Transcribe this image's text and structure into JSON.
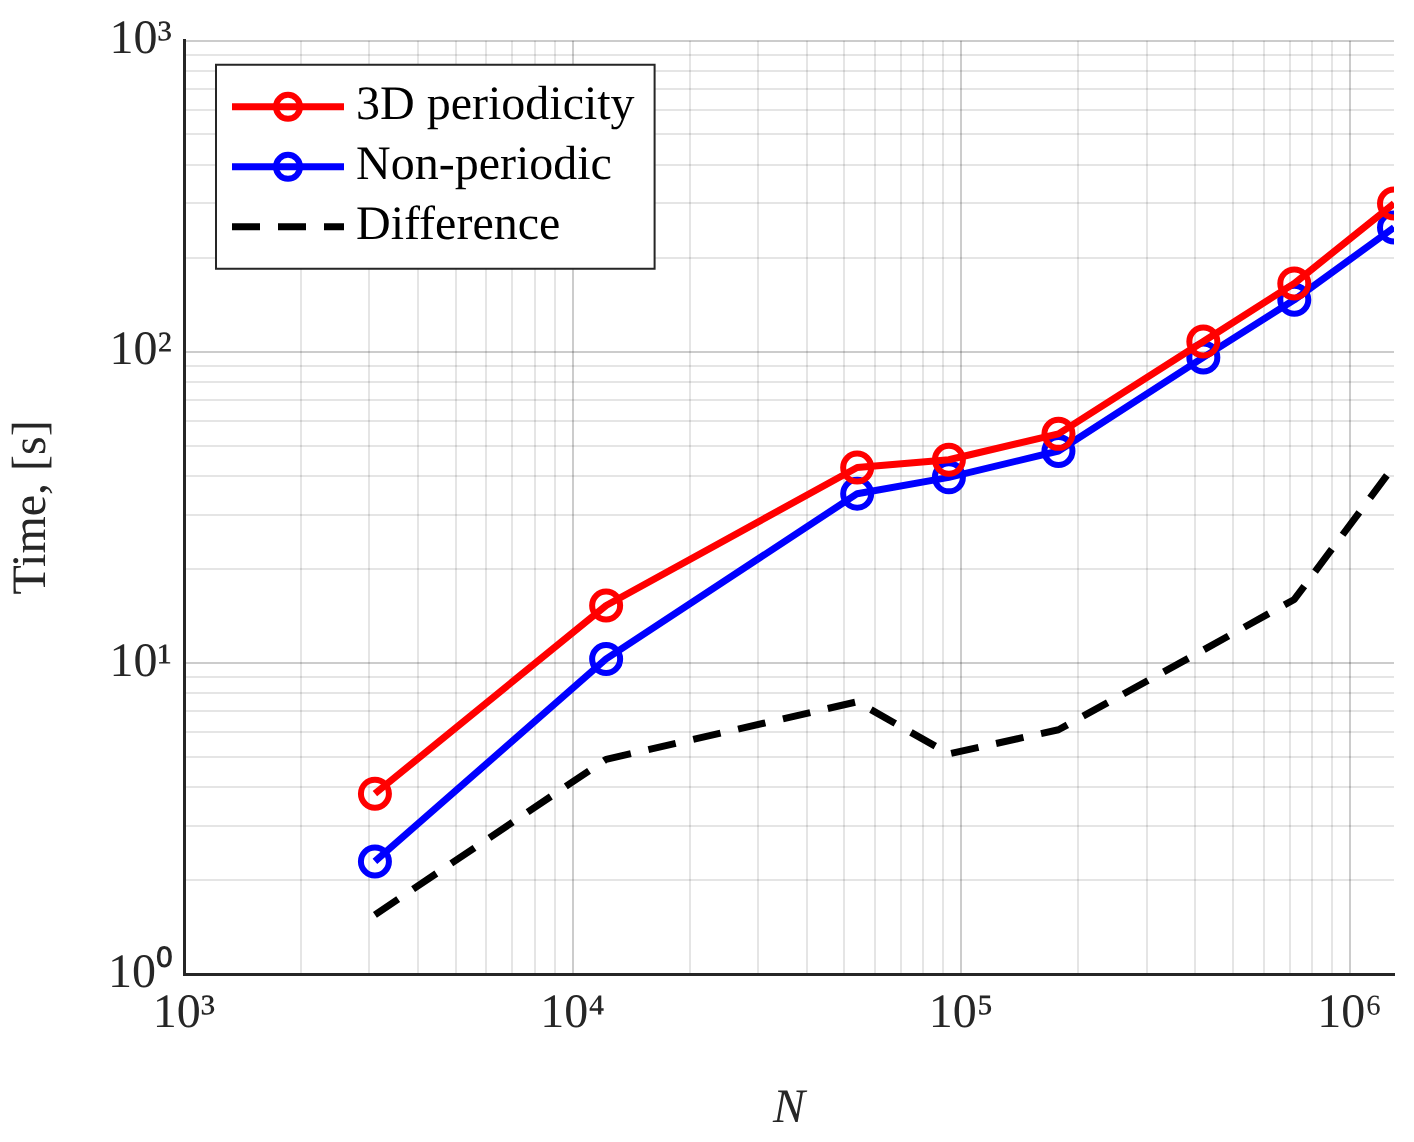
{
  "chart_data": {
    "type": "line",
    "xlabel": "N",
    "ylabel": "Time, [s]",
    "log": "xy",
    "grid": true,
    "legend": "top left",
    "xlim": [
      1000,
      1300000
    ],
    "ylim": [
      1,
      1000
    ],
    "xticks": [
      {
        "value": 1000,
        "label": "10³"
      },
      {
        "value": 2000,
        "label": null
      },
      {
        "value": 3000,
        "label": null
      },
      {
        "value": 4000,
        "label": null
      },
      {
        "value": 5000,
        "label": null
      },
      {
        "value": 6000,
        "label": null
      },
      {
        "value": 7000,
        "label": null
      },
      {
        "value": 8000,
        "label": null
      },
      {
        "value": 9000,
        "label": null
      },
      {
        "value": 10000,
        "label": "10⁴"
      },
      {
        "value": 20000,
        "label": null
      },
      {
        "value": 30000,
        "label": null
      },
      {
        "value": 40000,
        "label": null
      },
      {
        "value": 50000,
        "label": null
      },
      {
        "value": 60000,
        "label": null
      },
      {
        "value": 70000,
        "label": null
      },
      {
        "value": 80000,
        "label": null
      },
      {
        "value": 90000,
        "label": null
      },
      {
        "value": 100000,
        "label": "10⁵"
      },
      {
        "value": 200000,
        "label": null
      },
      {
        "value": 300000,
        "label": null
      },
      {
        "value": 400000,
        "label": null
      },
      {
        "value": 500000,
        "label": null
      },
      {
        "value": 600000,
        "label": null
      },
      {
        "value": 700000,
        "label": null
      },
      {
        "value": 800000,
        "label": null
      },
      {
        "value": 900000,
        "label": null
      },
      {
        "value": 1000000,
        "label": "10⁶"
      }
    ],
    "yticks": [
      {
        "value": 1,
        "label": "10⁰"
      },
      {
        "value": 2,
        "label": null
      },
      {
        "value": 3,
        "label": null
      },
      {
        "value": 4,
        "label": null
      },
      {
        "value": 5,
        "label": null
      },
      {
        "value": 6,
        "label": null
      },
      {
        "value": 7,
        "label": null
      },
      {
        "value": 8,
        "label": null
      },
      {
        "value": 9,
        "label": null
      },
      {
        "value": 10,
        "label": "10¹"
      },
      {
        "value": 20,
        "label": null
      },
      {
        "value": 30,
        "label": null
      },
      {
        "value": 40,
        "label": null
      },
      {
        "value": 50,
        "label": null
      },
      {
        "value": 60,
        "label": null
      },
      {
        "value": 70,
        "label": null
      },
      {
        "value": 80,
        "label": null
      },
      {
        "value": 90,
        "label": null
      },
      {
        "value": 100,
        "label": "10²"
      },
      {
        "value": 200,
        "label": null
      },
      {
        "value": 300,
        "label": null
      },
      {
        "value": 400,
        "label": null
      },
      {
        "value": 500,
        "label": null
      },
      {
        "value": 600,
        "label": null
      },
      {
        "value": 700,
        "label": null
      },
      {
        "value": 800,
        "label": null
      },
      {
        "value": 900,
        "label": null
      },
      {
        "value": 1000,
        "label": "10³"
      }
    ],
    "x": [
      3100,
      12200,
      54000,
      93000,
      178000,
      420000,
      720000,
      1300000
    ],
    "series": [
      {
        "name": "3D periodicity",
        "color": "#ff0000",
        "marker": "circle",
        "line_style": "solid",
        "values": [
          3.8,
          15.3,
          42.5,
          45,
          54.5,
          108,
          166,
          300
        ]
      },
      {
        "name": "Non-periodic",
        "color": "#0000ff",
        "marker": "circle",
        "line_style": "solid",
        "values": [
          2.3,
          10.3,
          35,
          39.5,
          48,
          96,
          147,
          251
        ]
      },
      {
        "name": "Difference",
        "color": "#000000",
        "marker": "none",
        "line_style": "dashed",
        "values": [
          1.55,
          4.9,
          7.5,
          5.1,
          6.1,
          11,
          16,
          43
        ]
      }
    ]
  }
}
